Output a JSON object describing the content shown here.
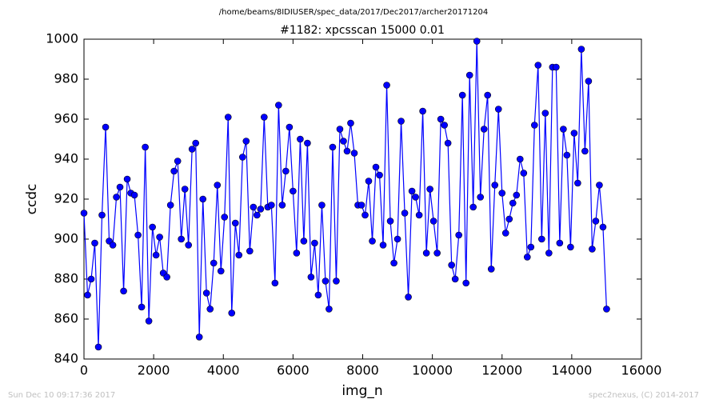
{
  "chart_data": {
    "type": "line",
    "suptitle": "/home/beams/8IDIUSER/spec_data/2017/Dec2017/archer20171204",
    "title": "#1182: xpcsscan 15000 0.01",
    "x_label": "img_n",
    "y_label": "ccdc",
    "footer_left": "Sun Dec 10 09:17:36 2017",
    "footer_right": "spec2nexus, (C) 2014-2017",
    "xlim": [
      0,
      16000
    ],
    "xticks": [
      0,
      2000,
      4000,
      6000,
      8000,
      10000,
      12000,
      14000,
      16000
    ],
    "ylim": [
      840,
      1000
    ],
    "yticks": [
      840,
      860,
      880,
      900,
      920,
      940,
      960,
      980,
      1000
    ],
    "x": [
      0,
      103,
      207,
      310,
      414,
      517,
      621,
      724,
      828,
      931,
      1034,
      1138,
      1241,
      1345,
      1448,
      1552,
      1655,
      1759,
      1862,
      1966,
      2069,
      2172,
      2276,
      2379,
      2483,
      2586,
      2690,
      2793,
      2897,
      3000,
      3103,
      3207,
      3310,
      3414,
      3517,
      3621,
      3724,
      3828,
      3931,
      4034,
      4138,
      4241,
      4345,
      4448,
      4552,
      4655,
      4759,
      4862,
      4966,
      5069,
      5172,
      5276,
      5379,
      5483,
      5586,
      5690,
      5793,
      5897,
      6000,
      6103,
      6207,
      6310,
      6414,
      6517,
      6621,
      6724,
      6828,
      6931,
      7034,
      7138,
      7241,
      7345,
      7448,
      7552,
      7655,
      7759,
      7862,
      7966,
      8069,
      8172,
      8276,
      8379,
      8483,
      8586,
      8690,
      8793,
      8897,
      9000,
      9103,
      9207,
      9310,
      9414,
      9517,
      9621,
      9724,
      9828,
      9931,
      10034,
      10138,
      10241,
      10345,
      10448,
      10552,
      10655,
      10759,
      10862,
      10966,
      11069,
      11172,
      11276,
      11379,
      11483,
      11586,
      11690,
      11793,
      11897,
      12000,
      12103,
      12207,
      12310,
      12414,
      12517,
      12621,
      12724,
      12828,
      12931,
      13034,
      13138,
      13241,
      13345,
      13448,
      13552,
      13655,
      13759,
      13862,
      13966,
      14069,
      14172,
      14276,
      14379,
      14483,
      14586,
      14690,
      14793,
      14897,
      15000
    ],
    "series": [
      {
        "color": "#0000ff",
        "values": [
          913,
          872,
          880,
          898,
          846,
          912,
          956,
          899,
          897,
          921,
          926,
          874,
          930,
          923,
          922,
          902,
          866,
          946,
          859,
          906,
          892,
          901,
          883,
          881,
          917,
          934,
          939,
          900,
          925,
          897,
          945,
          948,
          851,
          920,
          873,
          865,
          888,
          927,
          884,
          911,
          961,
          863,
          908,
          892,
          941,
          949,
          894,
          916,
          912,
          915,
          961,
          916,
          917,
          878,
          967,
          917,
          934,
          956,
          924,
          893,
          950,
          899,
          948,
          881,
          898,
          872,
          917,
          879,
          865,
          946,
          879,
          955,
          949,
          944,
          958,
          943,
          917,
          917,
          912,
          929,
          899,
          936,
          932,
          897,
          977,
          909,
          888,
          900,
          959,
          913,
          871,
          924,
          921,
          912,
          964,
          893,
          925,
          909,
          893,
          960,
          957,
          948,
          887,
          880,
          902,
          972,
          878,
          982,
          916,
          999,
          921,
          955,
          972,
          885,
          927,
          965,
          923,
          903,
          910,
          918,
          922,
          940,
          933,
          891,
          896,
          957,
          987,
          900,
          963,
          893,
          986,
          986,
          898,
          955,
          942,
          896,
          953,
          928,
          995,
          944,
          979,
          895,
          909,
          927,
          906,
          865
        ]
      }
    ]
  }
}
